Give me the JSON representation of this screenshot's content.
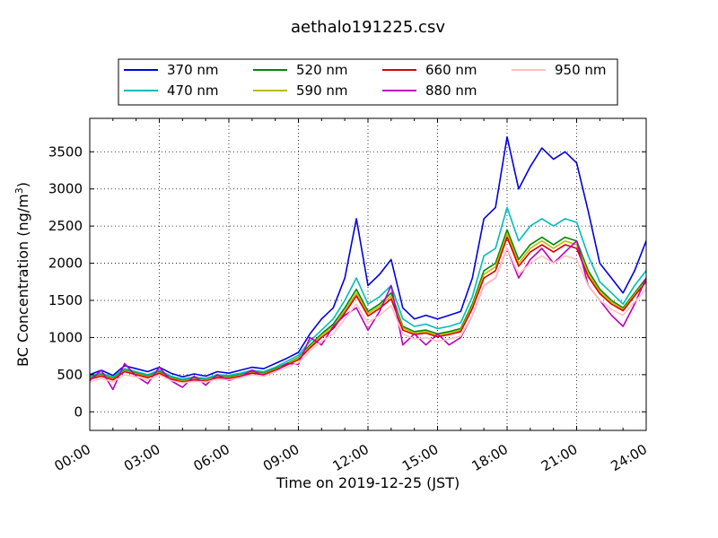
{
  "chart_data": {
    "type": "line",
    "title": "aethalo191225.csv",
    "xlabel": "Time on 2019-12-25 (JST)",
    "ylabel": "BC Concentration (ng/m",
    "ylabel_sup": "3",
    "ylabel_close": ")",
    "xlim_hours": [
      0,
      24
    ],
    "ylim": [
      -250,
      3950
    ],
    "x_ticks": [
      {
        "hour": 0,
        "label": "00:00"
      },
      {
        "hour": 3,
        "label": "03:00"
      },
      {
        "hour": 6,
        "label": "06:00"
      },
      {
        "hour": 9,
        "label": "09:00"
      },
      {
        "hour": 12,
        "label": "12:00"
      },
      {
        "hour": 15,
        "label": "15:00"
      },
      {
        "hour": 18,
        "label": "18:00"
      },
      {
        "hour": 21,
        "label": "21:00"
      },
      {
        "hour": 24,
        "label": "24:00"
      }
    ],
    "y_ticks": [
      {
        "value": 0,
        "label": "0"
      },
      {
        "value": 500,
        "label": "500"
      },
      {
        "value": 1000,
        "label": "1000"
      },
      {
        "value": 1500,
        "label": "1500"
      },
      {
        "value": 2000,
        "label": "2000"
      },
      {
        "value": 2500,
        "label": "2500"
      },
      {
        "value": 3000,
        "label": "3000"
      },
      {
        "value": 3500,
        "label": "3500"
      }
    ],
    "grid": true,
    "legend_placement": "top-center",
    "x": [
      0,
      0.5,
      1,
      1.5,
      2,
      2.5,
      3,
      3.5,
      4,
      4.5,
      5,
      5.5,
      6,
      6.5,
      7,
      7.5,
      8,
      8.5,
      9,
      9.5,
      10,
      10.5,
      11,
      11.5,
      12,
      12.5,
      13,
      13.5,
      14,
      14.5,
      15,
      15.5,
      16,
      16.5,
      17,
      17.5,
      18,
      18.5,
      19,
      19.5,
      20,
      20.5,
      21,
      21.5,
      22,
      22.5,
      23,
      23.5,
      24
    ],
    "series": [
      {
        "name": "370 nm",
        "color": "#0000dd",
        "values": [
          500,
          560,
          490,
          620,
          580,
          540,
          600,
          520,
          470,
          510,
          480,
          540,
          520,
          560,
          600,
          580,
          650,
          720,
          800,
          1050,
          1250,
          1400,
          1800,
          2600,
          1700,
          1850,
          2050,
          1400,
          1250,
          1300,
          1250,
          1300,
          1350,
          1800,
          2600,
          2750,
          3700,
          3000,
          3300,
          3550,
          3400,
          3500,
          3350,
          2700,
          2000,
          1800,
          1600,
          1900,
          2300
        ]
      },
      {
        "name": "470 nm",
        "color": "#00bbbb",
        "values": [
          480,
          520,
          470,
          580,
          540,
          500,
          560,
          480,
          440,
          470,
          450,
          500,
          490,
          520,
          560,
          540,
          600,
          680,
          760,
          950,
          1100,
          1250,
          1500,
          1800,
          1450,
          1550,
          1700,
          1250,
          1150,
          1180,
          1120,
          1150,
          1200,
          1550,
          2100,
          2200,
          2750,
          2300,
          2500,
          2600,
          2500,
          2600,
          2550,
          2100,
          1750,
          1600,
          1450,
          1700,
          1900
        ]
      },
      {
        "name": "520 nm",
        "color": "#008800",
        "values": [
          460,
          500,
          450,
          560,
          520,
          480,
          540,
          460,
          420,
          450,
          430,
          480,
          470,
          500,
          540,
          520,
          580,
          650,
          730,
          900,
          1050,
          1180,
          1400,
          1650,
          1350,
          1450,
          1600,
          1150,
          1080,
          1100,
          1050,
          1080,
          1120,
          1450,
          1900,
          2000,
          2450,
          2050,
          2250,
          2350,
          2250,
          2350,
          2300,
          1900,
          1650,
          1500,
          1400,
          1600,
          1800
        ]
      },
      {
        "name": "590 nm",
        "color": "#bbbb00",
        "values": [
          450,
          490,
          440,
          550,
          510,
          470,
          530,
          450,
          410,
          440,
          420,
          470,
          460,
          490,
          530,
          510,
          570,
          640,
          720,
          880,
          1030,
          1150,
          1360,
          1600,
          1320,
          1420,
          1560,
          1130,
          1060,
          1080,
          1030,
          1060,
          1100,
          1420,
          1850,
          1950,
          2400,
          2000,
          2200,
          2300,
          2200,
          2300,
          2250,
          1860,
          1620,
          1480,
          1380,
          1580,
          1770
        ]
      },
      {
        "name": "660 nm",
        "color": "#dd0000",
        "values": [
          440,
          480,
          430,
          540,
          500,
          460,
          520,
          440,
          400,
          430,
          410,
          460,
          450,
          480,
          520,
          500,
          560,
          630,
          700,
          860,
          1000,
          1120,
          1330,
          1560,
          1290,
          1390,
          1520,
          1100,
          1040,
          1060,
          1010,
          1040,
          1080,
          1390,
          1800,
          1900,
          2350,
          1960,
          2150,
          2250,
          2150,
          2250,
          2200,
          1820,
          1590,
          1450,
          1360,
          1560,
          1750
        ]
      },
      {
        "name": "880 nm",
        "color": "#bb00bb",
        "values": [
          420,
          560,
          300,
          650,
          480,
          380,
          600,
          420,
          330,
          480,
          360,
          500,
          420,
          470,
          560,
          480,
          540,
          650,
          640,
          1000,
          900,
          1150,
          1300,
          1400,
          1100,
          1350,
          1700,
          900,
          1050,
          900,
          1050,
          900,
          1000,
          1300,
          1700,
          1800,
          2200,
          1800,
          2050,
          2200,
          2000,
          2150,
          2300,
          1700,
          1500,
          1300,
          1150,
          1450,
          1800
        ]
      },
      {
        "name": "950 nm",
        "color": "#ffc0c0",
        "values": [
          400,
          450,
          400,
          500,
          470,
          430,
          500,
          420,
          390,
          410,
          400,
          440,
          430,
          460,
          500,
          480,
          540,
          600,
          660,
          820,
          950,
          1050,
          1250,
          1450,
          1200,
          1300,
          1430,
          1050,
          980,
          1000,
          950,
          980,
          1020,
          1300,
          1700,
          1800,
          2200,
          1850,
          2000,
          2100,
          2000,
          2100,
          2050,
          1700,
          1500,
          1380,
          1300,
          1480,
          1650
        ]
      }
    ]
  }
}
